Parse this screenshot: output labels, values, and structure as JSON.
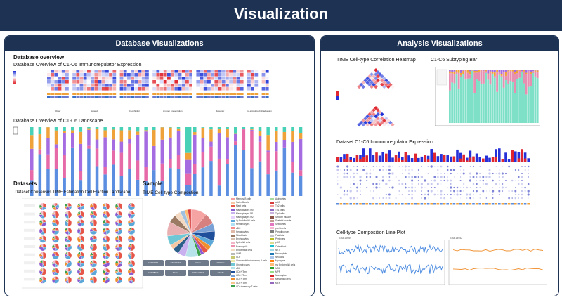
{
  "header": {
    "title": "Visualization"
  },
  "db_panel": {
    "title": "Database Visualizations",
    "overview_title": "Database overview",
    "heatmap_title": "Database Overview of C1-C6 Immunoregulator Expression",
    "landscape_title": "Database Overview of C1-C6 Landscape",
    "datasets_title": "Datasets",
    "fraction_title": "Dataset Consensus TIME Estimation Cell Fraction Landscape",
    "sample_title": "Sample",
    "composition_title": "TIME Cell-type Compostion",
    "category_labels": [
      "Other",
      "Ligand",
      "Co-inhibitor",
      "Antigen presentation",
      "Receptor",
      "Co-stimulator",
      "Cell adhesion"
    ],
    "sample_buttons": [
      "GSE91061",
      "GSE91061",
      "ICGC",
      "MSKCC",
      "GSE78220",
      "TCGA",
      "GSE121810",
      "SKCM"
    ],
    "legend": [
      {
        "label": "Memory B cells",
        "color": "#f4a0a0"
      },
      {
        "label": "Naive B cells",
        "color": "#f7c7a3"
      },
      {
        "label": "Mast cells",
        "color": "#e6574a"
      },
      {
        "label": "Macrophages M0",
        "color": "#8a5bd1"
      },
      {
        "label": "Macrophages M1",
        "color": "#c9b0ef"
      },
      {
        "label": "Macrophages M2",
        "color": "#e5d2ff"
      },
      {
        "label": "Ly Endothelial cells",
        "color": "#5aa7d8"
      },
      {
        "label": "Keratinocytes",
        "color": "#b0e0f5"
      },
      {
        "label": "aDC",
        "color": "#f58b8b"
      },
      {
        "label": "Hepatocytes",
        "color": "#e0b8a8"
      },
      {
        "label": "Fibroblasts",
        "color": "#9a7a62"
      },
      {
        "label": "Erythrocytes",
        "color": "#d8c0b0"
      },
      {
        "label": "Epithelial cells",
        "color": "#f2b6c6"
      },
      {
        "label": "Eosinophils",
        "color": "#ef8fb0"
      },
      {
        "label": "Endothelial cells",
        "color": "#f4d9c2"
      },
      {
        "label": "GMP",
        "color": "#b9b9b9"
      },
      {
        "label": "CLP",
        "color": "#c8c870"
      },
      {
        "label": "Class-switched memory B cells",
        "color": "#e8e8a8"
      },
      {
        "label": "Chondrocytes",
        "color": "#6fc7d6"
      },
      {
        "label": "cDC",
        "color": "#b6e3ea"
      },
      {
        "label": "CD8+ Tem",
        "color": "#1f4e9a"
      },
      {
        "label": "CD8+ Tcm",
        "color": "#7aa1d6"
      },
      {
        "label": "CD4+ Tem",
        "color": "#f08f2e"
      },
      {
        "label": "CD4+ Tcm",
        "color": "#f6c68f"
      },
      {
        "label": "CD4+ memory T-cells",
        "color": "#3aa04a"
      },
      {
        "label": "Astrocytes",
        "color": "#a8dba0"
      },
      {
        "label": "aDC",
        "color": "#d63a3a"
      },
      {
        "label": "Th2 cells",
        "color": "#f4a0a0"
      },
      {
        "label": "Th1 cells",
        "color": "#8e6cc3"
      },
      {
        "label": "Tgd cells",
        "color": "#c7b2e0"
      },
      {
        "label": "Smooth muscle",
        "color": "#8c564b"
      },
      {
        "label": "Skeletal muscle",
        "color": "#c49c94"
      },
      {
        "label": "Sebocytes",
        "color": "#e377c2"
      },
      {
        "label": "pro B-cells",
        "color": "#f7b6d2"
      },
      {
        "label": "Preadipocytes",
        "color": "#7f7f7f"
      },
      {
        "label": "Platelets",
        "color": "#c7c7c7"
      },
      {
        "label": "Pericytes",
        "color": "#bcbd22"
      },
      {
        "label": "pDC",
        "color": "#dbdb8d"
      },
      {
        "label": "Osteoblast",
        "color": "#17becf"
      },
      {
        "label": "NKT",
        "color": "#9edae5"
      },
      {
        "label": "Neutrophils",
        "color": "#1f77b4"
      },
      {
        "label": "Neurons",
        "color": "#aec7e8"
      },
      {
        "label": "Myocytes",
        "color": "#ff7f0e"
      },
      {
        "label": "mv Endothelial cells",
        "color": "#ffbb78"
      },
      {
        "label": "MSC",
        "color": "#2ca02c"
      },
      {
        "label": "MPP",
        "color": "#98df8a"
      },
      {
        "label": "Monocytes",
        "color": "#d62728"
      },
      {
        "label": "Mesangial cells",
        "color": "#ff9896"
      },
      {
        "label": "MEP",
        "color": "#9467bd"
      }
    ]
  },
  "analysis_panel": {
    "title": "Analysis Visualizations",
    "corr_title": "TIME Cell-type Correlation Heatmap",
    "subtype_title": "C1-C6 Subtyping Bar",
    "dataset_expr_title": "Dataset C1-C6 Immunoregulator Expression",
    "line_title": "Cell-type Composition Line Plot",
    "line_left_label": "GSE19069",
    "line_right_label": "GSE14952"
  },
  "colors": {
    "header_bg": "#1e3354",
    "red": "#e0262e",
    "blue": "#2530d8",
    "pink": "#e66aa8",
    "purple": "#a56be0",
    "cornflower": "#5b8ee0",
    "orange": "#f0a23a",
    "teal": "#49d1b8"
  }
}
